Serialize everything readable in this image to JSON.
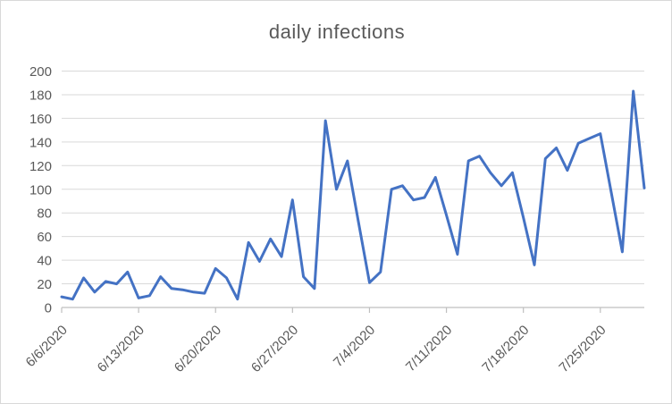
{
  "chart_title": "daily infections",
  "colors": {
    "series_line": "#4472C4",
    "gridline": "#D9D9D9",
    "axis_line": "#BFBFBF",
    "tick_label": "#595959",
    "title_text": "#595959",
    "chart_border": "#D9D9D9",
    "background": "#FFFFFF"
  },
  "chart_data": {
    "type": "line",
    "title": "daily infections",
    "legend": "none",
    "grid": "horizontal",
    "ylim": [
      0,
      200
    ],
    "y_tick_step": 20,
    "y_tick_labels": [
      "0",
      "20",
      "40",
      "60",
      "80",
      "100",
      "120",
      "140",
      "160",
      "180",
      "200"
    ],
    "x_tick_label_indices": [
      0,
      7,
      14,
      21,
      28,
      35,
      42,
      49
    ],
    "x_tick_labels": [
      "6/6/2020",
      "6/13/2020",
      "6/20/2020",
      "6/27/2020",
      "7/4/2020",
      "7/11/2020",
      "7/18/2020",
      "7/25/2020"
    ],
    "x": [
      "6/6/2020",
      "6/7/2020",
      "6/8/2020",
      "6/9/2020",
      "6/10/2020",
      "6/11/2020",
      "6/12/2020",
      "6/13/2020",
      "6/14/2020",
      "6/15/2020",
      "6/16/2020",
      "6/17/2020",
      "6/18/2020",
      "6/19/2020",
      "6/20/2020",
      "6/21/2020",
      "6/22/2020",
      "6/23/2020",
      "6/24/2020",
      "6/25/2020",
      "6/26/2020",
      "6/27/2020",
      "6/28/2020",
      "6/29/2020",
      "6/30/2020",
      "7/1/2020",
      "7/2/2020",
      "7/3/2020",
      "7/4/2020",
      "7/5/2020",
      "7/6/2020",
      "7/7/2020",
      "7/8/2020",
      "7/9/2020",
      "7/10/2020",
      "7/11/2020",
      "7/12/2020",
      "7/13/2020",
      "7/14/2020",
      "7/15/2020",
      "7/16/2020",
      "7/17/2020",
      "7/18/2020",
      "7/19/2020",
      "7/20/2020",
      "7/21/2020",
      "7/22/2020",
      "7/23/2020",
      "7/24/2020",
      "7/25/2020",
      "7/26/2020",
      "7/27/2020",
      "7/28/2020",
      "7/29/2020"
    ],
    "values": [
      9,
      7,
      25,
      13,
      22,
      20,
      30,
      8,
      10,
      26,
      16,
      15,
      13,
      12,
      33,
      25,
      7,
      55,
      39,
      58,
      43,
      91,
      26,
      16,
      158,
      100,
      124,
      72,
      21,
      30,
      100,
      103,
      91,
      93,
      110,
      78,
      45,
      124,
      128,
      114,
      103,
      114,
      76,
      36,
      126,
      135,
      116,
      139,
      143,
      147,
      97,
      47,
      183,
      101
    ]
  }
}
